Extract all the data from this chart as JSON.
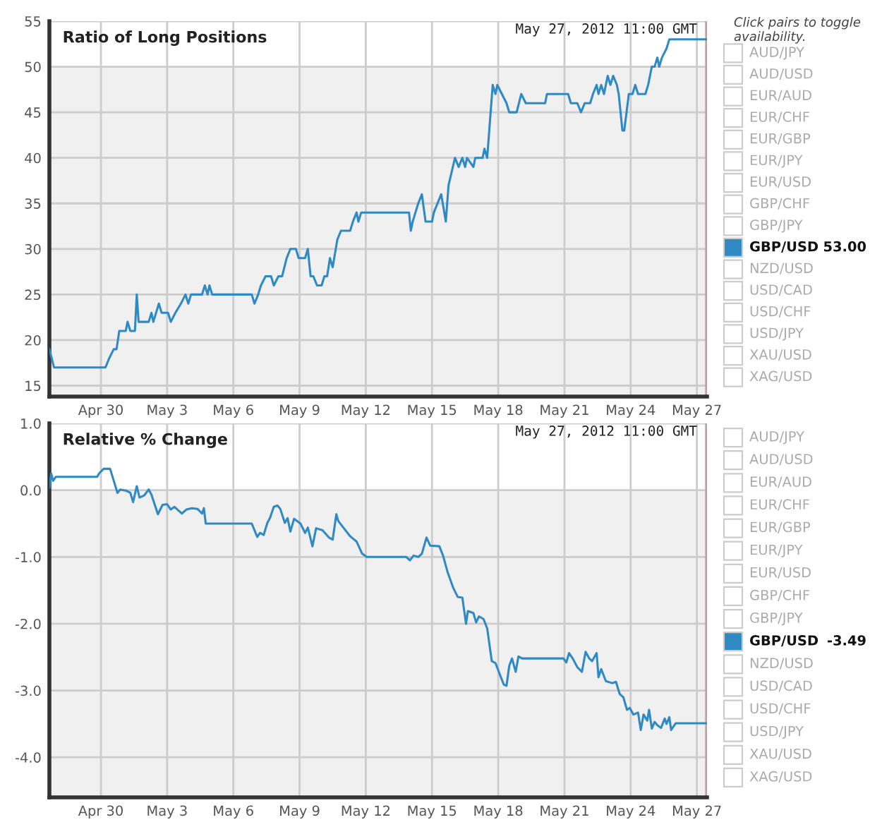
{
  "chart_data": [
    {
      "type": "line",
      "title": "Ratio of Long Positions",
      "annotations": [
        "May 27, 2012 11:00 GMT",
        "53.00"
      ],
      "legend_title": "Click pairs to toggle availability.",
      "legend": "right",
      "grid": true,
      "xlim": [
        "2012-04-27T16:00",
        "2012-05-27T11:00"
      ],
      "xticks": [
        {
          "value": "2012-04-30",
          "label": "Apr 30"
        },
        {
          "value": "2012-05-03",
          "label": "May 3"
        },
        {
          "value": "2012-05-06",
          "label": "May 6"
        },
        {
          "value": "2012-05-09",
          "label": "May 9"
        },
        {
          "value": "2012-05-12",
          "label": "May 12"
        },
        {
          "value": "2012-05-15",
          "label": "May 15"
        },
        {
          "value": "2012-05-18",
          "label": "May 18"
        },
        {
          "value": "2012-05-21",
          "label": "May 21"
        },
        {
          "value": "2012-05-24",
          "label": "May 24"
        },
        {
          "value": "2012-05-27",
          "label": "May 27"
        }
      ],
      "ylim": [
        13.8,
        55
      ],
      "yticks": [
        15,
        20,
        25,
        30,
        35,
        40,
        45,
        50,
        55
      ],
      "bands": [
        {
          "axis": "y",
          "from": 13.8,
          "to": 50,
          "color": "#f0f0f0"
        }
      ],
      "ref_lines": [
        {
          "axis": "x",
          "value": "2012-05-27T11:00",
          "color": "#c9a0a0"
        }
      ],
      "series": [
        {
          "name": "AUD/JPY"
        },
        {
          "name": "AUD/USD"
        },
        {
          "name": "EUR/AUD"
        },
        {
          "name": "EUR/CHF"
        },
        {
          "name": "EUR/GBP"
        },
        {
          "name": "EUR/JPY"
        },
        {
          "name": "EUR/USD"
        },
        {
          "name": "GBP/CHF"
        },
        {
          "name": "GBP/JPY"
        },
        {
          "name": "GBP/USD",
          "color": "#2f8ac4",
          "x": [
            "2012-04-27T16:00",
            "2012-04-27T21:00",
            "2012-04-30T05:00",
            "2012-04-30T09:00",
            "2012-04-30T14:00",
            "2012-04-30T17:00",
            "2012-04-30T20:00",
            "2012-05-01T03:00",
            "2012-05-01T05:00",
            "2012-05-01T08:00",
            "2012-05-01T13:00",
            "2012-05-01T15:00",
            "2012-05-01T17:00",
            "2012-05-02T04:00",
            "2012-05-02T07:00",
            "2012-05-02T09:00",
            "2012-05-02T15:00",
            "2012-05-02T18:00",
            "2012-05-03T01:00",
            "2012-05-03T04:00",
            "2012-05-03T09:00",
            "2012-05-03T15:00",
            "2012-05-03T20:00",
            "2012-05-03T23:00",
            "2012-05-04T02:00",
            "2012-05-04T14:00",
            "2012-05-04T17:00",
            "2012-05-04T20:00",
            "2012-05-04T22:00",
            "2012-05-05T01:00",
            "2012-05-06T20:00",
            "2012-05-06T23:00",
            "2012-05-07T03:00",
            "2012-05-07T06:00",
            "2012-05-07T11:00",
            "2012-05-07T17:00",
            "2012-05-07T20:00",
            "2012-05-08T01:00",
            "2012-05-08T05:00",
            "2012-05-08T10:00",
            "2012-05-08T14:00",
            "2012-05-08T20:00",
            "2012-05-08T23:00",
            "2012-05-09T06:00",
            "2012-05-09T09:00",
            "2012-05-09T12:00",
            "2012-05-09T15:00",
            "2012-05-09T19:00",
            "2012-05-10T00:00",
            "2012-05-10T03:00",
            "2012-05-10T06:00",
            "2012-05-10T09:00",
            "2012-05-10T12:00",
            "2012-05-10T17:00",
            "2012-05-10T21:00",
            "2012-05-11T07:00",
            "2012-05-11T10:00",
            "2012-05-11T14:00",
            "2012-05-11T16:00",
            "2012-05-11T19:00",
            "2012-05-13T23:00",
            "2012-05-14T01:00",
            "2012-05-14T03:00",
            "2012-05-14T09:00",
            "2012-05-14T13:00",
            "2012-05-14T17:00",
            "2012-05-15T00:00",
            "2012-05-15T02:00",
            "2012-05-15T10:00",
            "2012-05-15T15:00",
            "2012-05-15T18:00",
            "2012-05-16T01:00",
            "2012-05-16T05:00",
            "2012-05-16T09:00",
            "2012-05-16T12:00",
            "2012-05-16T14:00",
            "2012-05-16T21:00",
            "2012-05-16T23:00",
            "2012-05-17T07:00",
            "2012-05-17T09:00",
            "2012-05-17T12:00",
            "2012-05-17T18:00",
            "2012-05-17T21:00",
            "2012-05-17T23:00",
            "2012-05-18T04:00",
            "2012-05-18T09:00",
            "2012-05-18T12:00",
            "2012-05-18T20:00",
            "2012-05-19T01:00",
            "2012-05-19T06:00",
            "2012-05-20T03:00",
            "2012-05-20T05:00",
            "2012-05-21T04:00",
            "2012-05-21T07:00",
            "2012-05-21T14:00",
            "2012-05-21T18:00",
            "2012-05-21T22:00",
            "2012-05-22T04:00",
            "2012-05-22T07:00",
            "2012-05-22T11:00",
            "2012-05-22T13:00",
            "2012-05-22T16:00",
            "2012-05-22T19:00",
            "2012-05-22T23:00",
            "2012-05-23T02:00",
            "2012-05-23T05:00",
            "2012-05-23T09:00",
            "2012-05-23T11:00",
            "2012-05-23T15:00",
            "2012-05-23T17:00",
            "2012-05-23T22:00",
            "2012-05-24T02:00",
            "2012-05-24T05:00",
            "2012-05-24T08:00",
            "2012-05-24T16:00",
            "2012-05-24T19:00",
            "2012-05-24T23:00",
            "2012-05-25T02:00",
            "2012-05-25T05:00",
            "2012-05-25T07:00",
            "2012-05-25T10:00",
            "2012-05-25T15:00",
            "2012-05-25T18:00",
            "2012-05-27T11:00"
          ],
          "values": [
            19,
            17,
            17,
            18,
            19,
            19,
            21,
            21,
            22,
            21,
            21,
            25,
            22,
            22,
            23,
            22,
            24,
            23,
            23,
            22,
            23,
            24,
            25,
            24,
            25,
            25,
            26,
            25,
            26,
            25,
            25,
            24,
            25,
            26,
            27,
            27,
            26,
            27,
            27,
            29,
            30,
            30,
            29,
            29,
            30,
            27,
            27,
            26,
            26,
            27,
            27,
            29,
            28,
            31,
            32,
            32,
            33,
            34,
            33,
            34,
            34,
            32,
            33,
            35,
            36,
            33,
            33,
            34,
            36,
            33,
            37,
            40,
            39,
            40,
            39,
            40,
            39,
            40,
            40,
            41,
            40,
            48,
            47,
            48,
            47,
            46,
            45,
            45,
            47,
            46,
            46,
            47,
            47,
            46,
            46,
            45,
            46,
            46,
            47,
            48,
            47,
            48,
            47,
            49,
            48,
            49,
            48,
            47,
            43,
            43,
            47,
            47,
            48,
            47,
            47,
            48,
            50,
            50,
            51,
            50,
            51,
            52,
            53,
            53
          ]
        },
        {
          "name": "NZD/USD"
        },
        {
          "name": "USD/CAD"
        },
        {
          "name": "USD/CHF"
        },
        {
          "name": "USD/JPY"
        },
        {
          "name": "XAU/USD"
        },
        {
          "name": "XAG/USD"
        }
      ]
    },
    {
      "type": "line",
      "title": "Relative % Change",
      "annotations": [
        "May 27, 2012 11:00 GMT",
        "-3.49"
      ],
      "legend": "right",
      "grid": true,
      "xlim": [
        "2012-04-27T16:00",
        "2012-05-27T11:00"
      ],
      "xticks": [
        {
          "value": "2012-04-30",
          "label": "Apr 30"
        },
        {
          "value": "2012-05-03",
          "label": "May 3"
        },
        {
          "value": "2012-05-06",
          "label": "May 6"
        },
        {
          "value": "2012-05-09",
          "label": "May 9"
        },
        {
          "value": "2012-05-12",
          "label": "May 12"
        },
        {
          "value": "2012-05-15",
          "label": "May 15"
        },
        {
          "value": "2012-05-18",
          "label": "May 18"
        },
        {
          "value": "2012-05-21",
          "label": "May 21"
        },
        {
          "value": "2012-05-24",
          "label": "May 24"
        },
        {
          "value": "2012-05-27",
          "label": "May 27"
        }
      ],
      "ylim": [
        -4.6,
        1.0
      ],
      "yticks": [
        {
          "value": 1,
          "label": "1.0"
        },
        {
          "value": 0,
          "label": "0.0"
        },
        {
          "value": -1,
          "label": "-1.0"
        },
        {
          "value": -2,
          "label": "-2.0"
        },
        {
          "value": -3,
          "label": "-3.0"
        },
        {
          "value": -4,
          "label": "-4.0"
        }
      ],
      "bands": [
        {
          "axis": "y",
          "from": -4.6,
          "to": 0,
          "color": "#f0f0f0"
        }
      ],
      "ref_lines": [
        {
          "axis": "x",
          "value": "2012-05-27T11:00",
          "color": "#c9a0a0"
        }
      ],
      "series": [
        {
          "name": "AUD/JPY"
        },
        {
          "name": "AUD/USD"
        },
        {
          "name": "EUR/AUD"
        },
        {
          "name": "EUR/CHF"
        },
        {
          "name": "EUR/GBP"
        },
        {
          "name": "EUR/JPY"
        },
        {
          "name": "EUR/USD"
        },
        {
          "name": "GBP/CHF"
        },
        {
          "name": "GBP/JPY"
        },
        {
          "name": "GBP/USD",
          "color": "#2f8ac4",
          "x": [
            "2012-04-27T16:00",
            "2012-04-27T18:00",
            "2012-04-27T20:00",
            "2012-04-27T23:00",
            "2012-04-29T20:00",
            "2012-04-29T22:00",
            "2012-04-30T03:00",
            "2012-04-30T10:00",
            "2012-04-30T14:00",
            "2012-04-30T18:00",
            "2012-04-30T21:00",
            "2012-05-01T04:00",
            "2012-05-01T08:00",
            "2012-05-01T11:00",
            "2012-05-01T15:00",
            "2012-05-01T18:00",
            "2012-05-01T23:00",
            "2012-05-02T04:00",
            "2012-05-02T07:00",
            "2012-05-02T14:00",
            "2012-05-02T19:00",
            "2012-05-03T00:00",
            "2012-05-03T04:00",
            "2012-05-03T08:00",
            "2012-05-03T16:00",
            "2012-05-03T21:00",
            "2012-05-04T03:00",
            "2012-05-04T09:00",
            "2012-05-04T14:00",
            "2012-05-04T16:00",
            "2012-05-04T18:00",
            "2012-05-06T20:00",
            "2012-05-06T23:00",
            "2012-05-07T02:00",
            "2012-05-07T05:00",
            "2012-05-07T09:00",
            "2012-05-07T13:00",
            "2012-05-07T16:00",
            "2012-05-07T20:00",
            "2012-05-08T00:00",
            "2012-05-08T03:00",
            "2012-05-08T08:00",
            "2012-05-08T11:00",
            "2012-05-08T14:00",
            "2012-05-08T18:00",
            "2012-05-09T01:00",
            "2012-05-09T06:00",
            "2012-05-09T09:00",
            "2012-05-09T14:00",
            "2012-05-09T18:00",
            "2012-05-10T01:00",
            "2012-05-10T08:00",
            "2012-05-10T12:00",
            "2012-05-10T16:00",
            "2012-05-10T18:00",
            "2012-05-10T23:00",
            "2012-05-11T07:00",
            "2012-05-11T14:00",
            "2012-05-11T20:00",
            "2012-05-12T01:00",
            "2012-05-13T20:00",
            "2012-05-14T00:00",
            "2012-05-14T04:00",
            "2012-05-14T09:00",
            "2012-05-14T13:00",
            "2012-05-14T18:00",
            "2012-05-14T22:00",
            "2012-05-15T08:00",
            "2012-05-15T12:00",
            "2012-05-15T17:00",
            "2012-05-15T23:00",
            "2012-05-16T04:00",
            "2012-05-16T09:00",
            "2012-05-16T13:00",
            "2012-05-16T15:00",
            "2012-05-16T21:00",
            "2012-05-17T00:00",
            "2012-05-17T03:00",
            "2012-05-17T08:00",
            "2012-05-17T12:00",
            "2012-05-17T17:00",
            "2012-05-17T21:00",
            "2012-05-18T02:00",
            "2012-05-18T06:00",
            "2012-05-18T09:00",
            "2012-05-18T12:00",
            "2012-05-18T15:00",
            "2012-05-18T19:00",
            "2012-05-18T22:00",
            "2012-05-19T02:00",
            "2012-05-20T23:00",
            "2012-05-21T02:00",
            "2012-05-21T05:00",
            "2012-05-21T09:00",
            "2012-05-21T14:00",
            "2012-05-21T19:00",
            "2012-05-21T23:00",
            "2012-05-22T03:00",
            "2012-05-22T06:00",
            "2012-05-22T11:00",
            "2012-05-22T13:00",
            "2012-05-22T16:00",
            "2012-05-22T21:00",
            "2012-05-23T04:00",
            "2012-05-23T08:00",
            "2012-05-23T12:00",
            "2012-05-23T16:00",
            "2012-05-23T20:00",
            "2012-05-23T23:00",
            "2012-05-24T03:00",
            "2012-05-24T08:00",
            "2012-05-24T11:00",
            "2012-05-24T14:00",
            "2012-05-24T18:00",
            "2012-05-24T20:00",
            "2012-05-24T23:00",
            "2012-05-25T02:00",
            "2012-05-25T05:00",
            "2012-05-25T09:00",
            "2012-05-25T13:00",
            "2012-05-25T15:00",
            "2012-05-25T18:00",
            "2012-05-25T20:00",
            "2012-05-26T01:00",
            "2012-05-27T11:00"
          ],
          "values": [
            0.04,
            0.25,
            0.14,
            0.2,
            0.2,
            0.25,
            0.32,
            0.32,
            0.14,
            -0.04,
            0.01,
            -0.01,
            -0.04,
            -0.18,
            0.06,
            -0.11,
            -0.08,
            0.01,
            -0.07,
            -0.36,
            -0.22,
            -0.21,
            -0.29,
            -0.25,
            -0.35,
            -0.29,
            -0.27,
            -0.28,
            -0.35,
            -0.27,
            -0.5,
            -0.5,
            -0.6,
            -0.7,
            -0.64,
            -0.67,
            -0.49,
            -0.41,
            -0.25,
            -0.23,
            -0.28,
            -0.49,
            -0.42,
            -0.62,
            -0.43,
            -0.5,
            -0.64,
            -0.56,
            -0.84,
            -0.57,
            -0.6,
            -0.71,
            -0.74,
            -0.36,
            -0.46,
            -0.55,
            -0.69,
            -0.77,
            -0.95,
            -1.0,
            -1.0,
            -1.05,
            -0.98,
            -1.0,
            -0.95,
            -0.71,
            -0.83,
            -0.84,
            -0.98,
            -1.23,
            -1.46,
            -1.6,
            -1.61,
            -2.0,
            -1.81,
            -1.84,
            -1.98,
            -1.89,
            -1.93,
            -2.07,
            -2.56,
            -2.59,
            -2.77,
            -2.91,
            -2.93,
            -2.63,
            -2.52,
            -2.72,
            -2.49,
            -2.52,
            -2.52,
            -2.58,
            -2.44,
            -2.52,
            -2.65,
            -2.72,
            -2.42,
            -2.52,
            -2.56,
            -2.44,
            -2.8,
            -2.68,
            -2.86,
            -2.89,
            -2.87,
            -3.05,
            -3.1,
            -3.29,
            -3.26,
            -3.36,
            -3.33,
            -3.59,
            -3.36,
            -3.45,
            -3.29,
            -3.57,
            -3.47,
            -3.52,
            -3.56,
            -3.42,
            -3.5,
            -3.4,
            -3.59,
            -3.49,
            -3.49
          ]
        },
        {
          "name": "NZD/USD"
        },
        {
          "name": "USD/CAD"
        },
        {
          "name": "USD/CHF"
        },
        {
          "name": "USD/JPY"
        },
        {
          "name": "XAU/USD"
        },
        {
          "name": "XAG/USD"
        }
      ]
    }
  ]
}
